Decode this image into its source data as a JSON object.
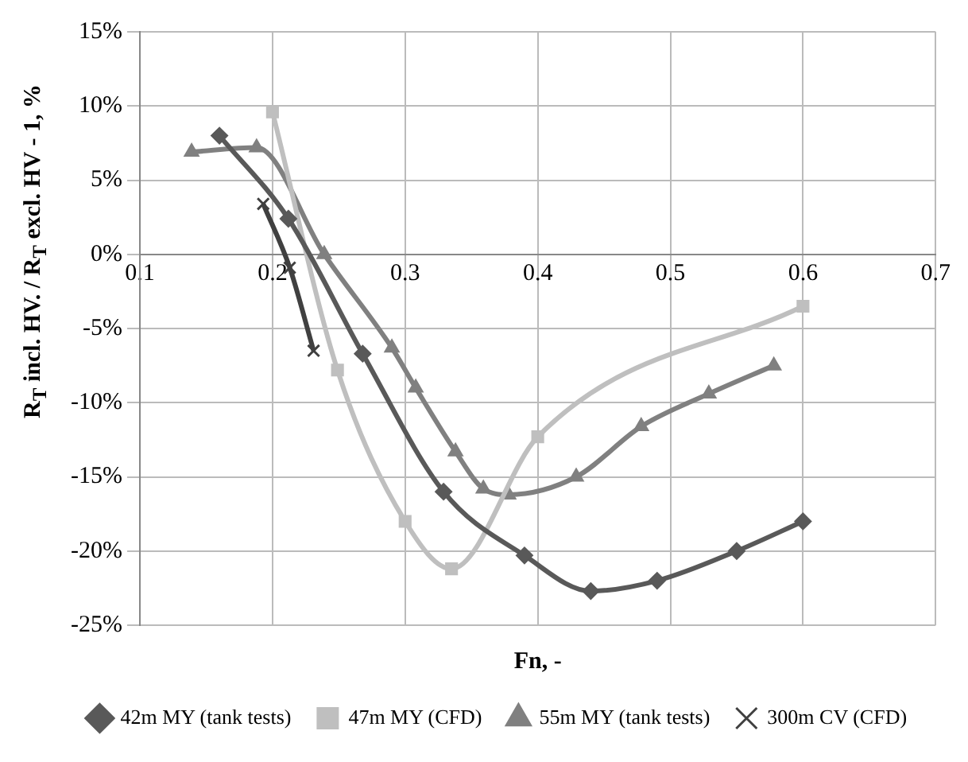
{
  "chart_data": {
    "type": "line",
    "xlabel": "Fn, -",
    "ylabel": "R$_{T}$ incl. HV. / R$_{T}$ excl. HV - 1, %",
    "xlim": [
      0.1,
      0.7
    ],
    "xticks": [
      0.1,
      0.2,
      0.3,
      0.4,
      0.5,
      0.6,
      0.7
    ],
    "ylim": [
      -25,
      15
    ],
    "yticks": [
      {
        "value": -25,
        "label": "-25%"
      },
      {
        "value": -20,
        "label": "-20%"
      },
      {
        "value": -15,
        "label": "-15%"
      },
      {
        "value": -10,
        "label": "-10%"
      },
      {
        "value": -5,
        "label": "-5%"
      },
      {
        "value": 0,
        "label": "0%"
      },
      {
        "value": 5,
        "label": "5%"
      },
      {
        "value": 10,
        "label": "10%"
      },
      {
        "value": 15,
        "label": "15%"
      }
    ],
    "grid": true,
    "legend": "bottom",
    "series": [
      {
        "name": "42m MY (tank tests)",
        "color": "#595959",
        "marker": "diamond",
        "x": [
          0.16,
          0.212,
          0.268,
          0.329,
          0.39,
          0.44,
          0.49,
          0.55,
          0.6
        ],
        "values": [
          8,
          2.4,
          -6.7,
          -16,
          -20.3,
          -22.7,
          -22,
          -20,
          -18
        ]
      },
      {
        "name": "47m MY (CFD)",
        "color": "#bfbfbf",
        "marker": "square",
        "x": [
          0.2,
          0.249,
          0.3,
          0.335,
          0.4,
          0.6
        ],
        "values": [
          9.6,
          -7.8,
          -18,
          -21.2,
          -12.3,
          -3.5
        ]
      },
      {
        "name": "55m MY (tank tests)",
        "color": "#808080",
        "marker": "triangle",
        "x": [
          0.139,
          0.188,
          0.239,
          0.29,
          0.308,
          0.338,
          0.359,
          0.378,
          0.429,
          0.478,
          0.529,
          0.578
        ],
        "values": [
          6.9,
          7.2,
          0,
          -6.3,
          -9,
          -13.3,
          -15.8,
          -16.2,
          -15,
          -11.6,
          -9.4,
          -7.5
        ]
      },
      {
        "name": "300m CV (CFD)",
        "color": "#404040",
        "marker": "cross",
        "x": [
          0.193,
          0.213,
          0.231
        ],
        "values": [
          3.4,
          -0.9,
          -6.5
        ]
      }
    ]
  }
}
